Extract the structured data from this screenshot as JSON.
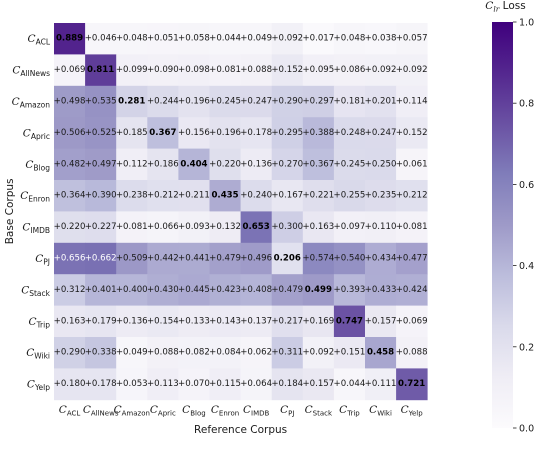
{
  "chart_data": {
    "type": "heatmap",
    "xlabel": "Reference Corpus",
    "ylabel": "Base Corpus",
    "x_ticks": [
      {
        "base": "C",
        "sub": "ACL"
      },
      {
        "base": "C",
        "sub": "AllNews"
      },
      {
        "base": "C",
        "sub": "Amazon"
      },
      {
        "base": "C",
        "sub": "Apric"
      },
      {
        "base": "C",
        "sub": "Blog"
      },
      {
        "base": "C",
        "sub": "Enron"
      },
      {
        "base": "C",
        "sub": "IMDB"
      },
      {
        "base": "C",
        "sub": "PJ"
      },
      {
        "base": "C",
        "sub": "Stack"
      },
      {
        "base": "C",
        "sub": "Trip"
      },
      {
        "base": "C",
        "sub": "Wiki"
      },
      {
        "base": "C",
        "sub": "Yelp"
      }
    ],
    "y_ticks": [
      {
        "base": "C",
        "sub": "ACL"
      },
      {
        "base": "C",
        "sub": "AllNews"
      },
      {
        "base": "C",
        "sub": "Amazon"
      },
      {
        "base": "C",
        "sub": "Apric"
      },
      {
        "base": "C",
        "sub": "Blog"
      },
      {
        "base": "C",
        "sub": "Enron"
      },
      {
        "base": "C",
        "sub": "IMDB"
      },
      {
        "base": "C",
        "sub": "PJ"
      },
      {
        "base": "C",
        "sub": "Stack"
      },
      {
        "base": "C",
        "sub": "Trip"
      },
      {
        "base": "C",
        "sub": "Wiki"
      },
      {
        "base": "C",
        "sub": "Yelp"
      }
    ],
    "values": [
      [
        0.889,
        0.046,
        0.048,
        0.051,
        0.058,
        0.044,
        0.049,
        0.092,
        0.017,
        0.048,
        0.038,
        0.057
      ],
      [
        0.069,
        0.811,
        0.099,
        0.09,
        0.098,
        0.081,
        0.088,
        0.152,
        0.095,
        0.086,
        0.092,
        0.092
      ],
      [
        0.498,
        0.535,
        0.281,
        0.244,
        0.196,
        0.245,
        0.247,
        0.29,
        0.297,
        0.181,
        0.201,
        0.114
      ],
      [
        0.506,
        0.525,
        0.185,
        0.367,
        0.156,
        0.196,
        0.178,
        0.295,
        0.388,
        0.248,
        0.247,
        0.152
      ],
      [
        0.482,
        0.497,
        0.112,
        0.186,
        0.404,
        0.22,
        0.136,
        0.27,
        0.367,
        0.245,
        0.25,
        0.061
      ],
      [
        0.364,
        0.39,
        0.238,
        0.212,
        0.211,
        0.435,
        0.24,
        0.167,
        0.221,
        0.255,
        0.235,
        0.212
      ],
      [
        0.22,
        0.227,
        0.081,
        0.066,
        0.093,
        0.132,
        0.653,
        0.3,
        0.163,
        0.097,
        0.11,
        0.081
      ],
      [
        0.656,
        0.662,
        0.509,
        0.442,
        0.441,
        0.479,
        0.496,
        0.206,
        0.574,
        0.54,
        0.434,
        0.477
      ],
      [
        0.312,
        0.401,
        0.4,
        0.43,
        0.445,
        0.423,
        0.408,
        0.479,
        0.499,
        0.393,
        0.433,
        0.424
      ],
      [
        0.163,
        0.179,
        0.136,
        0.154,
        0.133,
        0.143,
        0.137,
        0.217,
        0.169,
        0.747,
        0.157,
        0.069
      ],
      [
        0.29,
        0.338,
        0.049,
        0.088,
        0.082,
        0.084,
        0.062,
        0.311,
        0.092,
        0.151,
        0.458,
        0.088
      ],
      [
        0.18,
        0.178,
        0.053,
        0.113,
        0.07,
        0.115,
        0.064,
        0.184,
        0.157,
        0.044,
        0.111,
        0.721
      ]
    ],
    "value_prefix": "+",
    "bold_diagonal": true,
    "vmin": 0.0,
    "vmax": 1.0,
    "colormap": "Purples",
    "colormap_stops": [
      "#fcfbfd",
      "#efedf5",
      "#dadaeb",
      "#bcbddc",
      "#9e9ac8",
      "#807dba",
      "#6a51a3",
      "#54278f",
      "#3f007d"
    ],
    "colorbar": {
      "title_base": "C",
      "title_sub": "lr",
      "title_rest": " Loss",
      "ticks": [
        0.0,
        0.2,
        0.4,
        0.6,
        0.8,
        1.0
      ],
      "tick_labels": [
        "0.0",
        "0.2",
        "0.4",
        "0.6",
        "0.8",
        "1.0"
      ]
    },
    "grid": false
  }
}
